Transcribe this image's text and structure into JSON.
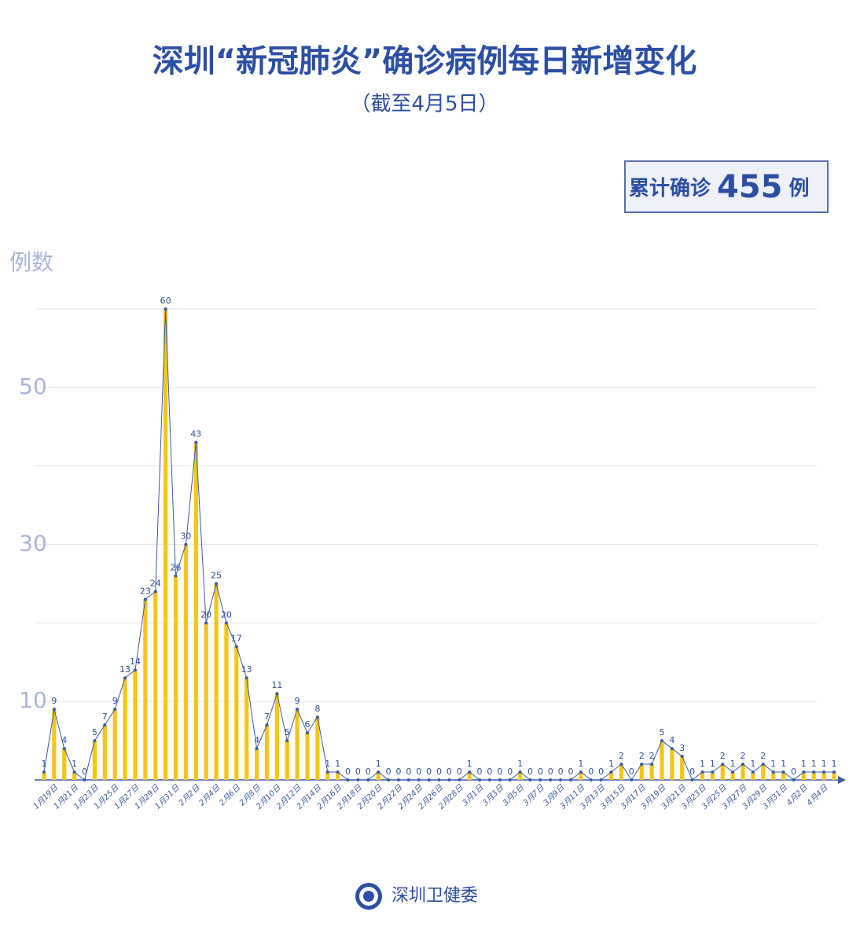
{
  "chart_data": {
    "type": "bar",
    "title": "深圳“新冠肺炎”确诊病例每日新增变化",
    "subtitle": "（截至4月5日）",
    "y_label": "例数",
    "total": {
      "label": "累计确诊",
      "value": 455,
      "unit": "例"
    },
    "source": "深圳卫健委",
    "categories": [
      null,
      "1月19日",
      null,
      "1月21日",
      null,
      "1月23日",
      null,
      "1月25日",
      null,
      "1月27日",
      null,
      "1月29日",
      null,
      "1月31日",
      null,
      "2月2日",
      null,
      "2月4日",
      null,
      "2月6日",
      null,
      "2月8日",
      null,
      "2月10日",
      null,
      "2月12日",
      null,
      "2月14日",
      null,
      "2月16日",
      null,
      "2月18日",
      null,
      "2月20日",
      null,
      "2月22日",
      null,
      "2月24日",
      null,
      "2月26日",
      null,
      "2月28日",
      null,
      "3月1日",
      null,
      "3月3日",
      null,
      "3月5日",
      null,
      "3月7日",
      null,
      "3月9日",
      null,
      "3月11日",
      null,
      "3月13日",
      null,
      "3月15日",
      null,
      "3月17日",
      null,
      "3月19日",
      null,
      "3月21日",
      null,
      "3月23日",
      null,
      "3月25日",
      null,
      "3月27日",
      null,
      "3月29日",
      null,
      "3月31日",
      null,
      "4月2日",
      null,
      "4月4日",
      null
    ],
    "values": [
      1,
      9,
      4,
      1,
      0,
      5,
      7,
      9,
      13,
      14,
      23,
      24,
      60,
      26,
      30,
      43,
      20,
      25,
      20,
      17,
      13,
      4,
      7,
      11,
      5,
      9,
      6,
      8,
      1,
      1,
      0,
      0,
      0,
      1,
      0,
      0,
      0,
      0,
      0,
      0,
      0,
      0,
      1,
      0,
      0,
      0,
      0,
      1,
      0,
      0,
      0,
      0,
      0,
      1,
      0,
      0,
      1,
      2,
      0,
      2,
      2,
      5,
      4,
      3,
      0,
      1,
      1,
      2,
      1,
      2,
      1,
      2,
      1,
      1,
      0,
      1,
      1,
      1,
      1
    ],
    "color": "#f5c518",
    "line_color": "#3a5aa8",
    "ylim": [
      0,
      60
    ],
    "yticks": [
      10,
      30,
      50
    ],
    "ygrid": [
      10,
      20,
      30,
      40,
      50,
      60
    ]
  }
}
